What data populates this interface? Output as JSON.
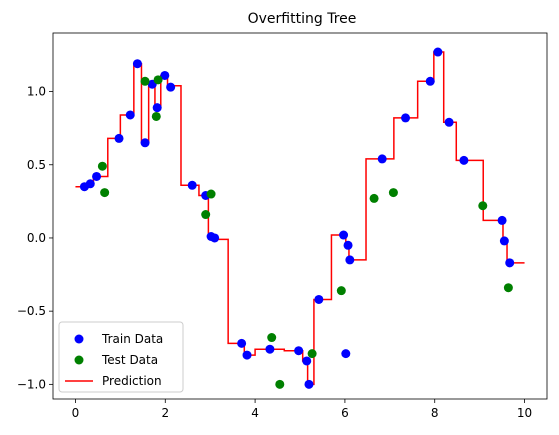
{
  "chart_data": {
    "type": "scatter",
    "title": "Overfitting Tree",
    "xlim": [
      -0.5,
      10.5
    ],
    "ylim": [
      -1.1,
      1.4
    ],
    "xticks": [
      0,
      2,
      4,
      6,
      8,
      10
    ],
    "yticks": [
      -1.0,
      -0.5,
      0.0,
      0.5,
      1.0
    ],
    "xtick_labels": [
      "0",
      "2",
      "4",
      "6",
      "8",
      "10"
    ],
    "ytick_labels": [
      "−1.0",
      "−0.5",
      "0.0",
      "0.5",
      "1.0"
    ],
    "grid": false,
    "legend_position": "lower-left",
    "series": [
      {
        "name": "Train Data",
        "kind": "scatter",
        "color": "#0000ff",
        "points": [
          [
            0.2,
            0.35
          ],
          [
            0.33,
            0.37
          ],
          [
            0.47,
            0.42
          ],
          [
            0.97,
            0.68
          ],
          [
            1.22,
            0.84
          ],
          [
            1.38,
            1.19
          ],
          [
            1.55,
            0.65
          ],
          [
            1.71,
            1.05
          ],
          [
            1.82,
            0.89
          ],
          [
            1.99,
            1.11
          ],
          [
            2.12,
            1.03
          ],
          [
            2.6,
            0.36
          ],
          [
            2.9,
            0.29
          ],
          [
            3.02,
            0.01
          ],
          [
            3.1,
            0.0
          ],
          [
            3.7,
            -0.72
          ],
          [
            3.82,
            -0.8
          ],
          [
            4.33,
            -0.76
          ],
          [
            4.97,
            -0.77
          ],
          [
            5.15,
            -0.84
          ],
          [
            5.2,
            -1.0
          ],
          [
            5.42,
            -0.42
          ],
          [
            5.97,
            0.02
          ],
          [
            6.07,
            -0.05
          ],
          [
            6.11,
            -0.15
          ],
          [
            6.83,
            0.54
          ],
          [
            7.35,
            0.82
          ],
          [
            7.9,
            1.07
          ],
          [
            8.07,
            1.27
          ],
          [
            8.32,
            0.79
          ],
          [
            8.65,
            0.53
          ],
          [
            9.5,
            0.12
          ],
          [
            9.55,
            -0.02
          ],
          [
            9.67,
            -0.17
          ],
          [
            6.02,
            -0.79
          ]
        ]
      },
      {
        "name": "Test Data",
        "kind": "scatter",
        "color": "#008000",
        "points": [
          [
            0.6,
            0.49
          ],
          [
            0.65,
            0.31
          ],
          [
            1.55,
            1.07
          ],
          [
            1.8,
            0.83
          ],
          [
            1.84,
            1.08
          ],
          [
            2.9,
            0.16
          ],
          [
            3.02,
            0.3
          ],
          [
            4.37,
            -0.68
          ],
          [
            4.55,
            -1.0
          ],
          [
            5.27,
            -0.79
          ],
          [
            5.92,
            -0.36
          ],
          [
            6.65,
            0.27
          ],
          [
            7.08,
            0.31
          ],
          [
            9.07,
            0.22
          ],
          [
            9.64,
            -0.34
          ]
        ]
      },
      {
        "name": "Prediction",
        "kind": "line",
        "color": "#ff0000",
        "points": [
          [
            0.0,
            0.35
          ],
          [
            0.27,
            0.35
          ],
          [
            0.27,
            0.36
          ],
          [
            0.4,
            0.36
          ],
          [
            0.4,
            0.42
          ],
          [
            0.72,
            0.42
          ],
          [
            0.72,
            0.68
          ],
          [
            1.0,
            0.68
          ],
          [
            1.0,
            0.84
          ],
          [
            1.2,
            0.84
          ],
          [
            1.2,
            0.85
          ],
          [
            1.3,
            0.85
          ],
          [
            1.3,
            1.19
          ],
          [
            1.47,
            1.19
          ],
          [
            1.47,
            0.65
          ],
          [
            1.63,
            0.65
          ],
          [
            1.63,
            1.05
          ],
          [
            1.77,
            1.05
          ],
          [
            1.77,
            0.89
          ],
          [
            1.9,
            0.89
          ],
          [
            1.9,
            1.11
          ],
          [
            2.05,
            1.11
          ],
          [
            2.05,
            1.04
          ],
          [
            2.35,
            1.04
          ],
          [
            2.35,
            0.36
          ],
          [
            2.75,
            0.36
          ],
          [
            2.75,
            0.29
          ],
          [
            2.96,
            0.29
          ],
          [
            2.96,
            0.01
          ],
          [
            3.06,
            0.01
          ],
          [
            3.06,
            -0.01
          ],
          [
            3.4,
            -0.01
          ],
          [
            3.4,
            -0.72
          ],
          [
            3.76,
            -0.72
          ],
          [
            3.76,
            -0.8
          ],
          [
            4.0,
            -0.8
          ],
          [
            4.0,
            -0.76
          ],
          [
            4.65,
            -0.76
          ],
          [
            4.65,
            -0.77
          ],
          [
            5.06,
            -0.77
          ],
          [
            5.06,
            -0.84
          ],
          [
            5.17,
            -0.84
          ],
          [
            5.17,
            -1.0
          ],
          [
            5.31,
            -1.0
          ],
          [
            5.31,
            -0.42
          ],
          [
            5.7,
            -0.42
          ],
          [
            5.7,
            0.02
          ],
          [
            6.02,
            0.02
          ],
          [
            6.02,
            -0.05
          ],
          [
            6.09,
            -0.05
          ],
          [
            6.09,
            -0.15
          ],
          [
            6.47,
            -0.15
          ],
          [
            6.47,
            0.54
          ],
          [
            7.09,
            0.54
          ],
          [
            7.09,
            0.82
          ],
          [
            7.62,
            0.82
          ],
          [
            7.62,
            1.07
          ],
          [
            7.98,
            1.07
          ],
          [
            7.98,
            1.27
          ],
          [
            8.2,
            1.27
          ],
          [
            8.2,
            0.79
          ],
          [
            8.48,
            0.79
          ],
          [
            8.48,
            0.53
          ],
          [
            9.08,
            0.53
          ],
          [
            9.08,
            0.12
          ],
          [
            9.52,
            0.12
          ],
          [
            9.52,
            -0.02
          ],
          [
            9.61,
            -0.02
          ],
          [
            9.61,
            -0.17
          ],
          [
            10.0,
            -0.17
          ]
        ]
      }
    ]
  }
}
